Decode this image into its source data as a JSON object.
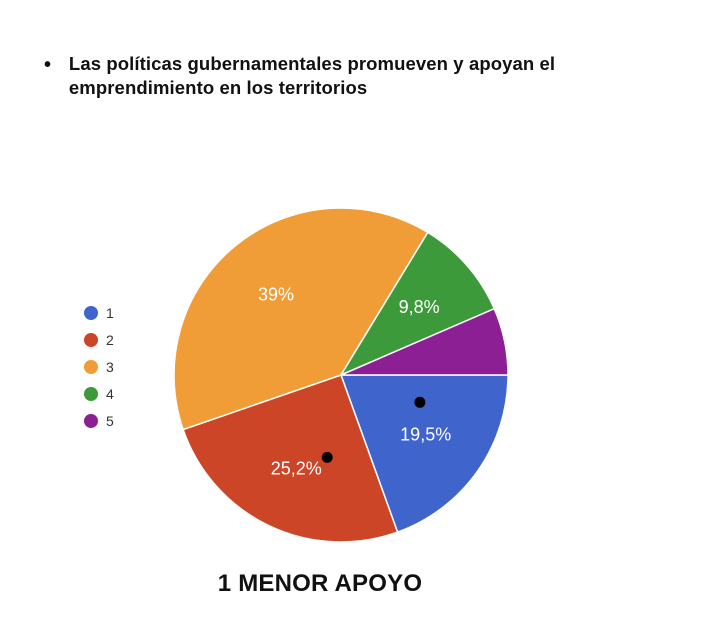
{
  "statement": {
    "bullet": "•",
    "text": "Las políticas gubernamentales promueven y apoyan el emprendimiento en los territorios"
  },
  "footer": {
    "label": "1 MENOR APOYO"
  },
  "chart_data": {
    "type": "pie",
    "categories": [
      "1",
      "2",
      "3",
      "4",
      "5"
    ],
    "values": [
      19.5,
      25.2,
      39.0,
      9.8,
      6.5
    ],
    "data_labels": [
      "19,5%",
      "25,2%",
      "39%",
      "9,8%",
      ""
    ],
    "colors": [
      "#3f64cc",
      "#cc4527",
      "#f09d38",
      "#3d9a3a",
      "#8c1f93"
    ],
    "legend": {
      "entries": [
        "1",
        "2",
        "3",
        "4",
        "5"
      ],
      "placement": "left"
    },
    "start_angle_deg": 0,
    "direction": "clockwise",
    "markers": [
      {
        "slice": "1"
      },
      {
        "slice": "2"
      }
    ]
  }
}
